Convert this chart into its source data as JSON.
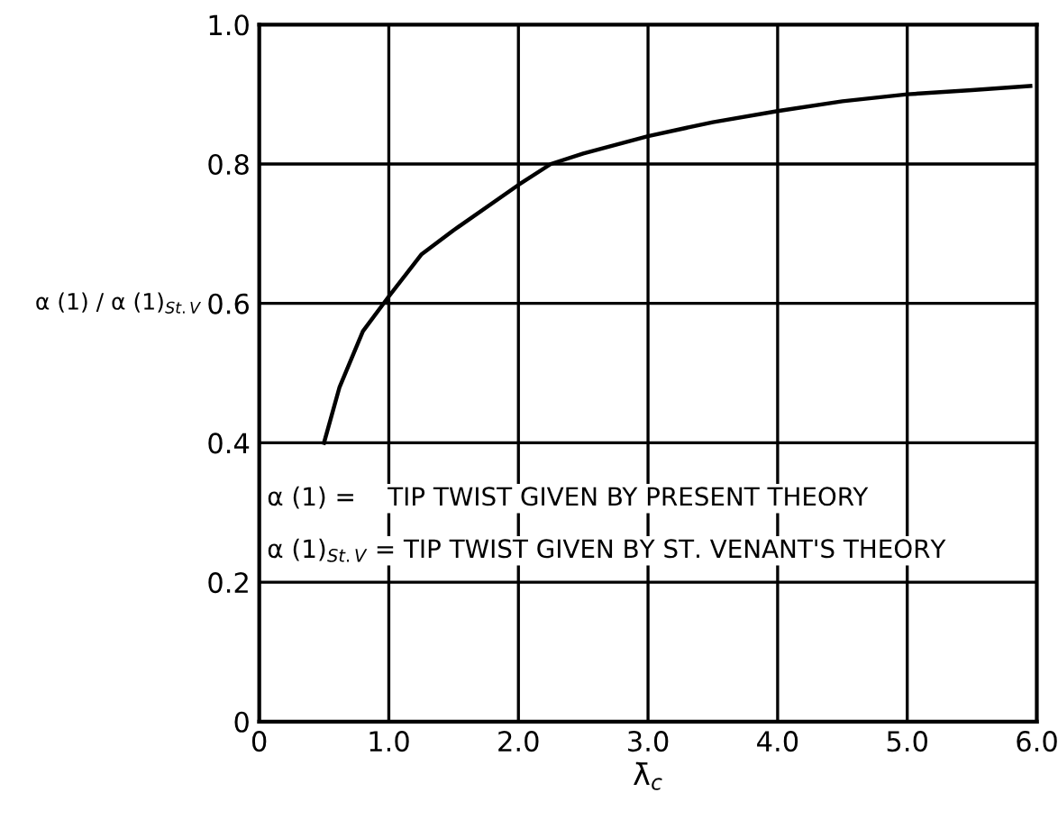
{
  "chart_data": {
    "type": "line",
    "xlabel": "λ̄$_{c}$",
    "ylabel": "α (1) / α (1)$_{St.V}$",
    "x": [
      0.5,
      0.62,
      0.8,
      1.0,
      1.25,
      1.5,
      2.0,
      2.25,
      2.5,
      3.0,
      3.5,
      4.0,
      4.5,
      5.0,
      5.5,
      5.95
    ],
    "series": [
      {
        "color": "#000000",
        "values": [
          0.4,
          0.48,
          0.56,
          0.61,
          0.67,
          0.705,
          0.77,
          0.8,
          0.815,
          0.84,
          0.86,
          0.876,
          0.89,
          0.9,
          0.906,
          0.912
        ]
      }
    ],
    "xlim": [
      0,
      6
    ],
    "ylim": [
      0,
      1
    ],
    "xticks": [
      0,
      {
        "value": 1,
        "label": "1.0"
      },
      {
        "value": 2,
        "label": "2.0"
      },
      {
        "value": 3,
        "label": "3.0"
      },
      {
        "value": 4,
        "label": "4.0"
      },
      {
        "value": 5,
        "label": "5.0"
      },
      {
        "value": 6,
        "label": "6.0"
      }
    ],
    "yticks": [
      0,
      {
        "value": 0.2,
        "label": "0.2"
      },
      {
        "value": 0.4,
        "label": "0.4"
      },
      {
        "value": 0.6,
        "label": "0.6"
      },
      {
        "value": 0.8,
        "label": "0.8"
      },
      {
        "value": 1,
        "label": "1.0"
      }
    ],
    "grid": true,
    "marker": "none",
    "line_style": "solid",
    "annotations": [
      "α (1) =    TIP TWIST GIVEN BY PRESENT THEORY",
      "α (1)$_{St.V}$ = TIP TWIST GIVEN BY ST. VENANT'S THEORY"
    ]
  }
}
